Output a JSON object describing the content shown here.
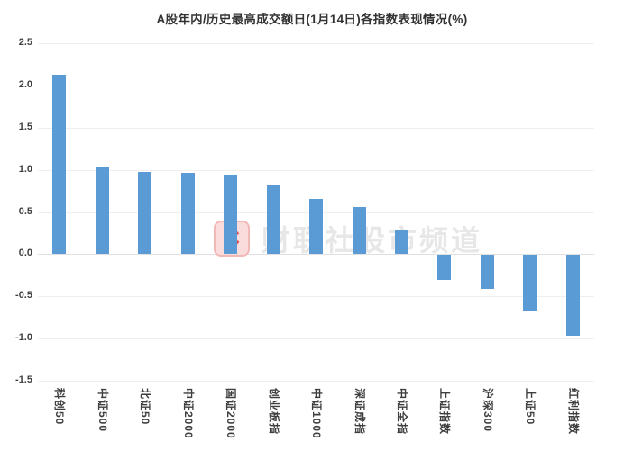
{
  "header": {
    "title": "A股年内/历史最高成交额日(1月14日)各指数表现情况(%)"
  },
  "watermark": {
    "logo_letter": "C",
    "text": "财联社股市频道",
    "logo_fg": "#e24a4a",
    "logo_bg": "#fadcdc",
    "logo_border": "#f2b8b8",
    "text_color": "#e7e7e7"
  },
  "colors": {
    "bar": "#5b9bd5",
    "grid": "#efefef",
    "zero_line": "#e0e0e0",
    "axis_text": "#3f3f3f",
    "title_text": "#333333"
  },
  "chart_data": {
    "type": "bar",
    "title": "A股年内/历史最高成交额日(1月14日)各指数表现情况(%)",
    "categories": [
      "科创50",
      "中证500",
      "北证50",
      "中证2000",
      "国证2000",
      "创业板指",
      "中证1000",
      "深证成指",
      "中证全指",
      "上证指数",
      "沪深300",
      "上证50",
      "红利指数"
    ],
    "values": [
      2.13,
      1.04,
      0.98,
      0.96,
      0.94,
      0.82,
      0.65,
      0.56,
      0.29,
      -0.3,
      -0.4,
      -0.67,
      -0.96
    ],
    "xlabel": "",
    "ylabel": "",
    "ylim": [
      -1.5,
      2.5
    ],
    "ytick_step": 0.5,
    "yticks": [
      "2.5",
      "2.0",
      "1.5",
      "1.0",
      "0.5",
      "0.0",
      "-0.5",
      "-1.0",
      "-1.5"
    ],
    "grid": true,
    "legend_position": "none",
    "bar_orientation": "vertical",
    "x_label_rotation_deg": 90
  }
}
